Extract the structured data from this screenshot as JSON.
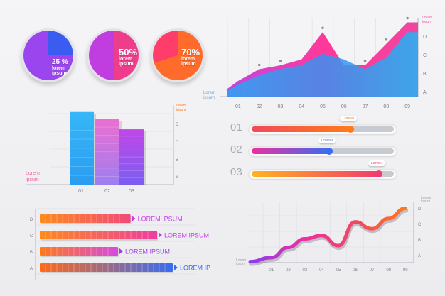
{
  "colors": {
    "blue": "#1ea0f0",
    "purple": "#8a3cf0",
    "magenta": "#ee2fa0",
    "orange": "#ff7a1a",
    "yellow": "#ffb41e",
    "axis": "#a6a8b4",
    "label_purple": "#7b3fe8",
    "label_pink": "#e8459a"
  },
  "pies": [
    {
      "pct": "25 %",
      "sub": "lorem\nipsum",
      "value": 25
    },
    {
      "pct": "50%",
      "sub": "lorem\nipsum",
      "value": 50
    },
    {
      "pct": "70%",
      "sub": "lorem\nipsum",
      "value": 70
    }
  ],
  "area_chart": {
    "label": "Lorem\nipsum",
    "legend": "Lorem\nipsum",
    "categories": [
      "01",
      "02",
      "03",
      "04",
      "05",
      "06",
      "07",
      "08",
      "09"
    ],
    "yticks": [
      "A",
      "B",
      "C",
      "D"
    ]
  },
  "bar_chart": {
    "label": "Lorem\nipsum",
    "legend": "Lorem\nipsum",
    "categories": [
      "01",
      "02",
      "03"
    ],
    "yticks": [
      "A",
      "B",
      "C",
      "D"
    ]
  },
  "progress": [
    {
      "num": "01",
      "value": 0.7,
      "tip": "LOREM"
    },
    {
      "num": "02",
      "value": 0.55,
      "tip": "LOREM"
    },
    {
      "num": "03",
      "value": 0.9,
      "tip": "LOREM"
    }
  ],
  "hbar_chart": {
    "yticks": [
      "D",
      "C",
      "B",
      "A"
    ],
    "labels": [
      "LOREM IPSUM",
      "LOREM IPSUM",
      "LOREM IPSUM",
      "LOREM IPSUM"
    ]
  },
  "line_chart": {
    "label": "Lorem\nipsum",
    "legend": "Lorem\nipsum",
    "categories": [
      "01",
      "02",
      "03",
      "04",
      "05",
      "06",
      "07",
      "08",
      "09"
    ],
    "yticks": [
      "A",
      "B",
      "C",
      "D"
    ]
  },
  "chart_data": [
    {
      "type": "pie",
      "values": [
        25,
        50,
        70
      ],
      "labels": [
        "25 %",
        "50%",
        "70%"
      ]
    },
    {
      "type": "area",
      "categories": [
        "01",
        "02",
        "03",
        "04",
        "05",
        "06",
        "07",
        "08",
        "09"
      ],
      "series": [
        {
          "values": [
            0.8,
            1.4,
            1.6,
            1.9,
            3.3,
            1.6,
            1.6,
            2.7,
            3.8
          ]
        },
        {
          "values": [
            0.6,
            1.1,
            1.4,
            1.6,
            2.2,
            1.9,
            1.4,
            2.0,
            3.3
          ]
        }
      ],
      "yticks": [
        "A",
        "B",
        "C",
        "D"
      ]
    },
    {
      "type": "bar",
      "categories": [
        "01",
        "02",
        "03"
      ],
      "values": [
        4.2,
        3.8,
        3.2
      ],
      "yticks": [
        "A",
        "B",
        "C",
        "D"
      ]
    },
    {
      "type": "bar",
      "orientation": "horizontal",
      "categories": [
        "D",
        "C",
        "B",
        "A"
      ],
      "values": [
        0.58,
        0.75,
        0.5,
        0.85
      ]
    },
    {
      "type": "line",
      "categories": [
        "01",
        "02",
        "03",
        "04",
        "05",
        "06",
        "07",
        "08",
        "09"
      ],
      "values": [
        0.3,
        0.9,
        1.4,
        1.6,
        1.0,
        2.4,
        2.0,
        2.6,
        3.2
      ],
      "yticks": [
        "A",
        "B",
        "C",
        "D"
      ]
    }
  ]
}
